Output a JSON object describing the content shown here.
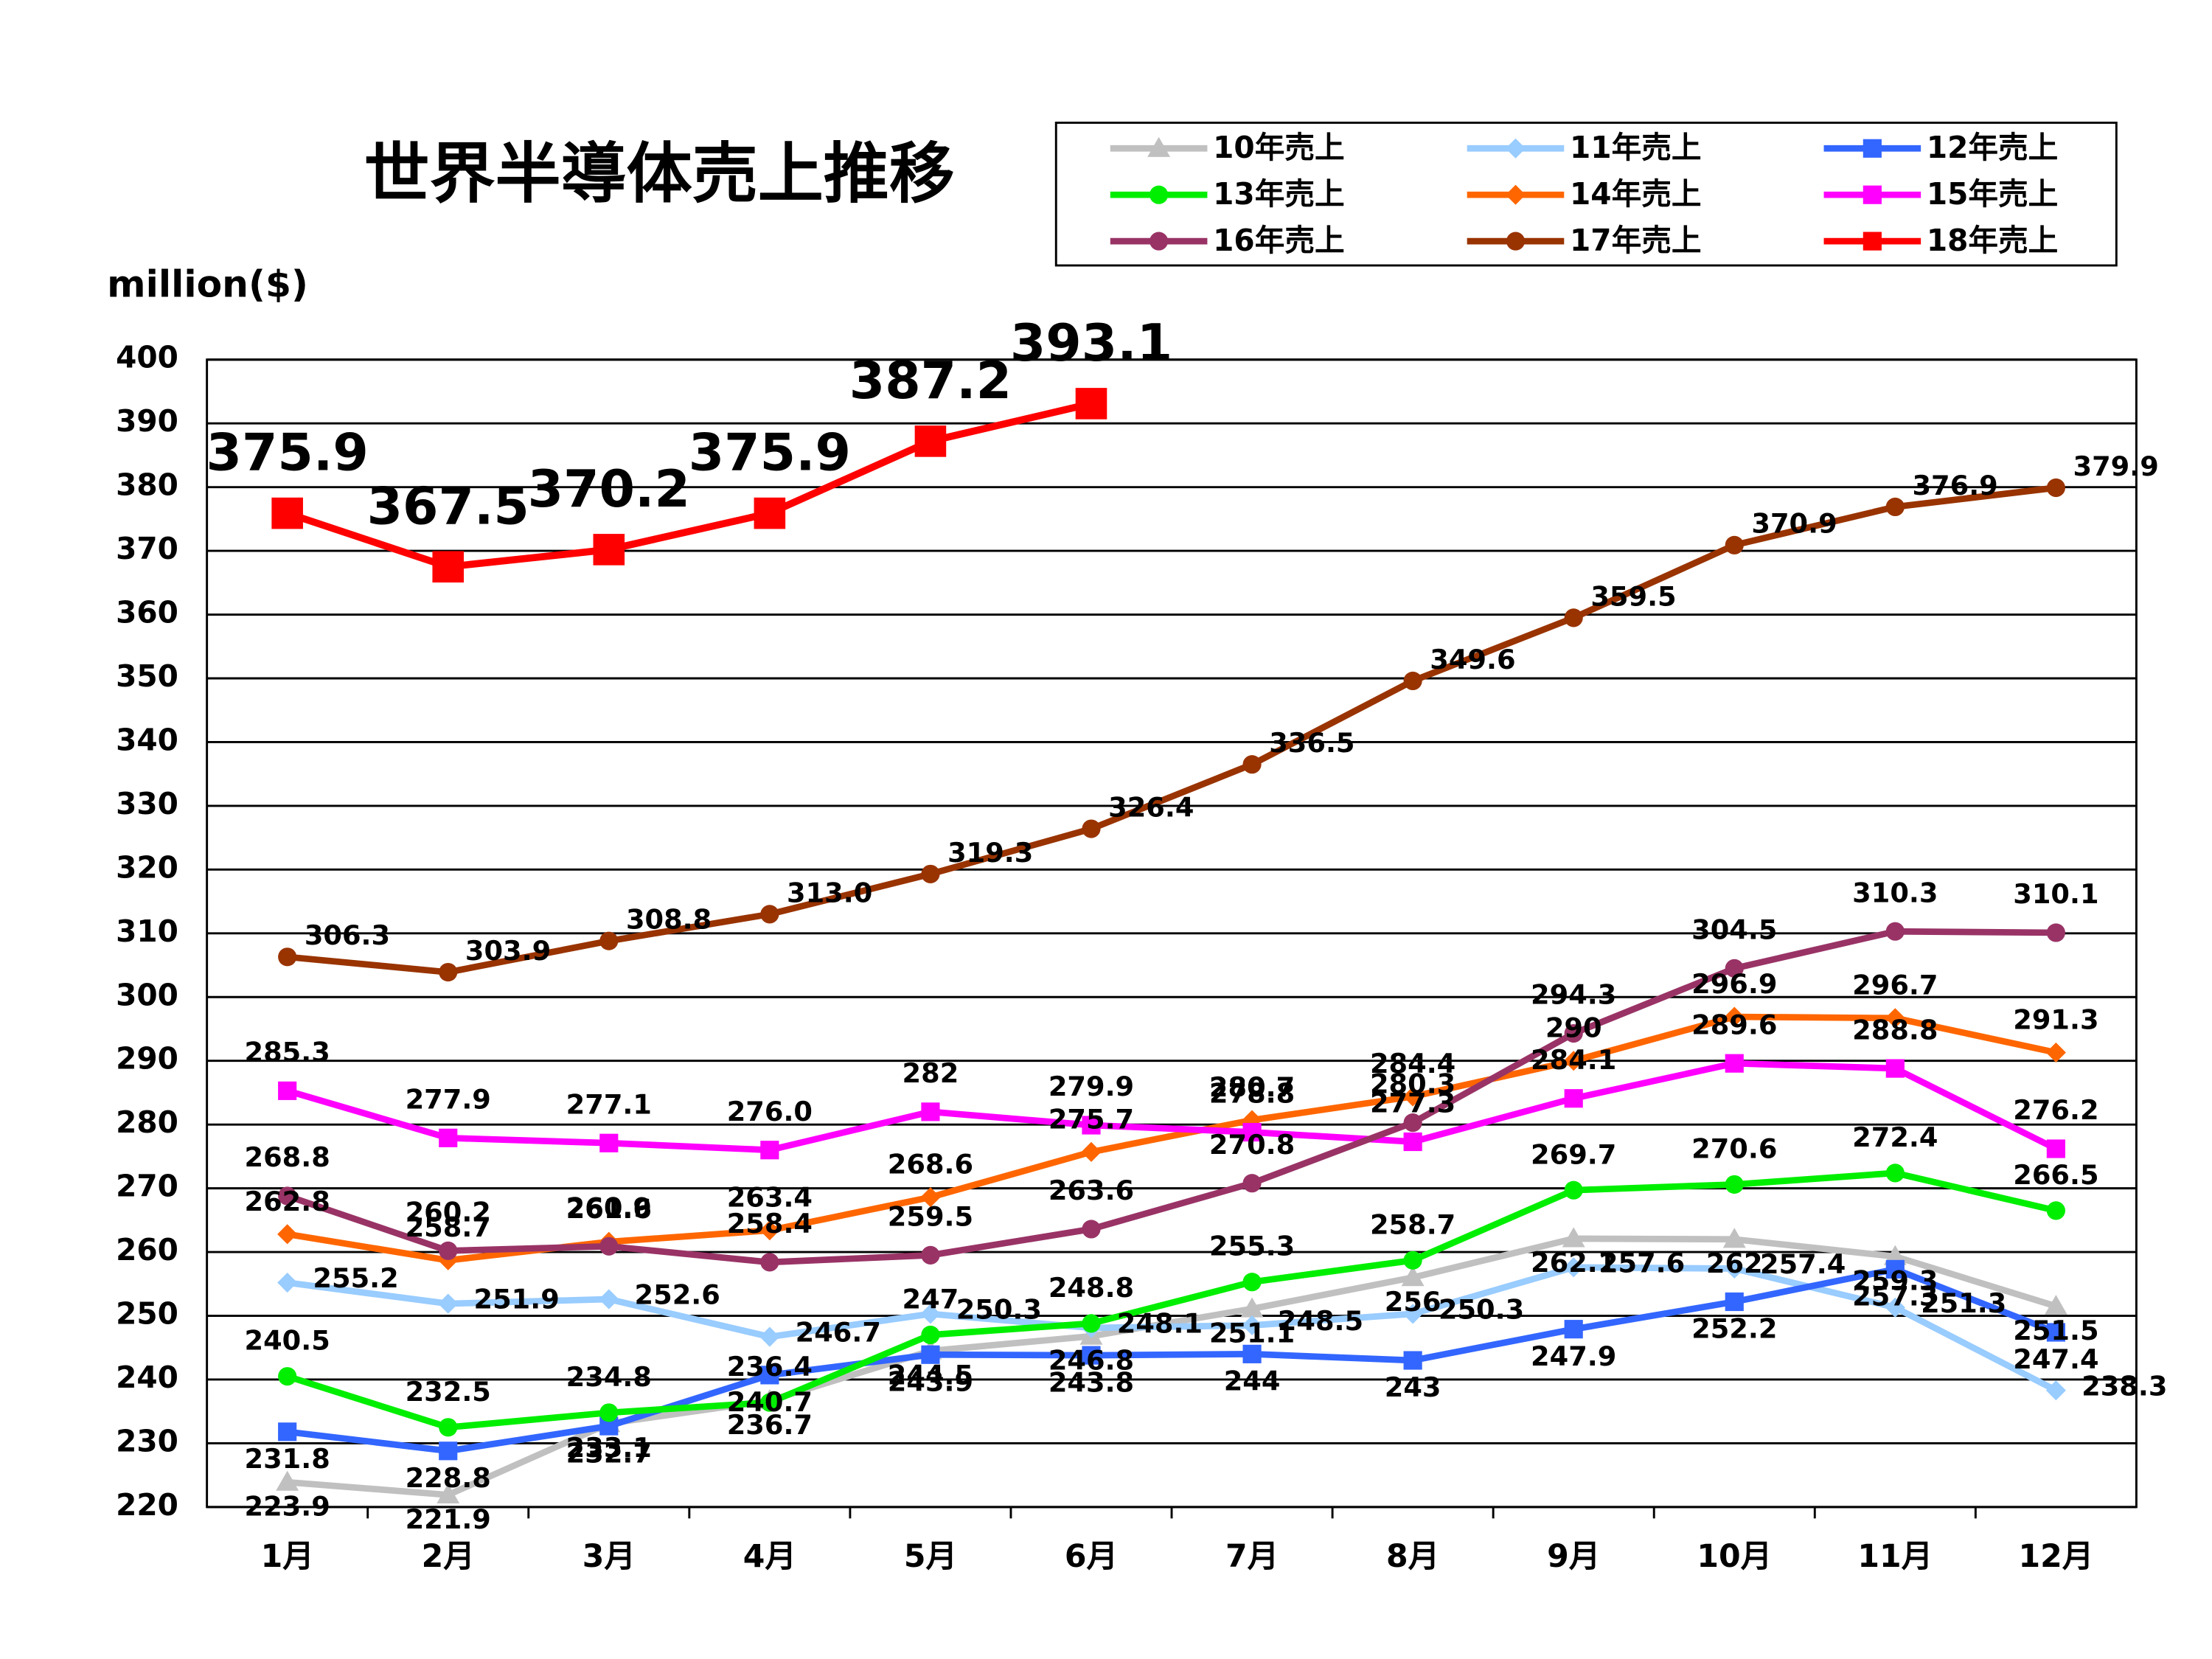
{
  "chart_data": {
    "type": "line",
    "title": "世界半導体売上推移",
    "y_label": "million($)",
    "categories": [
      "1月",
      "2月",
      "3月",
      "4月",
      "5月",
      "6月",
      "7月",
      "8月",
      "9月",
      "10月",
      "11月",
      "12月"
    ],
    "ylim": [
      220,
      400
    ],
    "yticks": [
      220,
      230,
      240,
      250,
      260,
      270,
      280,
      290,
      300,
      310,
      320,
      330,
      340,
      350,
      360,
      370,
      380,
      390,
      400
    ],
    "grid": true,
    "legend": "top-right",
    "series": [
      {
        "name": "10年売上",
        "color": "#c0c0c0",
        "marker": "triangle",
        "values": [
          223.9,
          221.9,
          233.1,
          236.7,
          244.5,
          246.8,
          251.1,
          256,
          262.1,
          262,
          259.3,
          251.5
        ]
      },
      {
        "name": "11年売上",
        "color": "#99ccff",
        "marker": "diamond",
        "values": [
          255.2,
          251.9,
          252.6,
          246.7,
          250.3,
          248.1,
          248.5,
          250.3,
          257.6,
          257.4,
          251.3,
          238.3
        ]
      },
      {
        "name": "12年売上",
        "color": "#3366ff",
        "marker": "square",
        "values": [
          231.8,
          228.8,
          232.7,
          240.7,
          243.9,
          243.8,
          244,
          243,
          247.9,
          252.2,
          257.3,
          247.4
        ]
      },
      {
        "name": "13年売上",
        "color": "#00ee00",
        "marker": "circle",
        "values": [
          240.5,
          232.5,
          234.8,
          236.4,
          247,
          248.8,
          255.3,
          258.7,
          269.7,
          270.6,
          272.4,
          266.5
        ]
      },
      {
        "name": "14年売上",
        "color": "#ff6600",
        "marker": "diamond",
        "values": [
          262.8,
          258.7,
          261.6,
          263.4,
          268.6,
          275.7,
          280.7,
          284.4,
          290,
          296.9,
          296.7,
          291.3
        ]
      },
      {
        "name": "15年売上",
        "color": "#ff00ff",
        "marker": "square",
        "values": [
          285.3,
          277.9,
          277.1,
          276,
          282,
          279.9,
          278.8,
          277.3,
          284.1,
          289.6,
          288.8,
          276.2
        ],
        "value_labels": [
          "285.3",
          "277.9",
          "277.1",
          "276.0",
          "282",
          "279.9",
          "278.8",
          "277.3",
          "284.1",
          "289.6",
          "288.8",
          "276.2"
        ]
      },
      {
        "name": "16年売上",
        "color": "#993366",
        "marker": "circle",
        "values": [
          268.8,
          260.2,
          260.9,
          258.4,
          259.5,
          263.6,
          270.8,
          280.3,
          294.3,
          304.5,
          310.3,
          310.1
        ]
      },
      {
        "name": "17年売上",
        "color": "#993300",
        "marker": "circle",
        "values": [
          306.3,
          303.9,
          308.8,
          313,
          319.3,
          326.4,
          336.5,
          349.6,
          359.5,
          370.9,
          376.9,
          379.9
        ],
        "value_labels": [
          "306.3",
          "303.9",
          "308.8",
          "313.0",
          "319.3",
          "326.4",
          "336.5",
          "349.6",
          "359.5",
          "370.9",
          "376.9",
          "379.9"
        ]
      },
      {
        "name": "18年売上",
        "color": "#ff0000",
        "marker": "bigsquare",
        "values": [
          375.9,
          367.5,
          370.2,
          375.9,
          387.2,
          393.1,
          null,
          null,
          null,
          null,
          null,
          null
        ]
      }
    ]
  }
}
